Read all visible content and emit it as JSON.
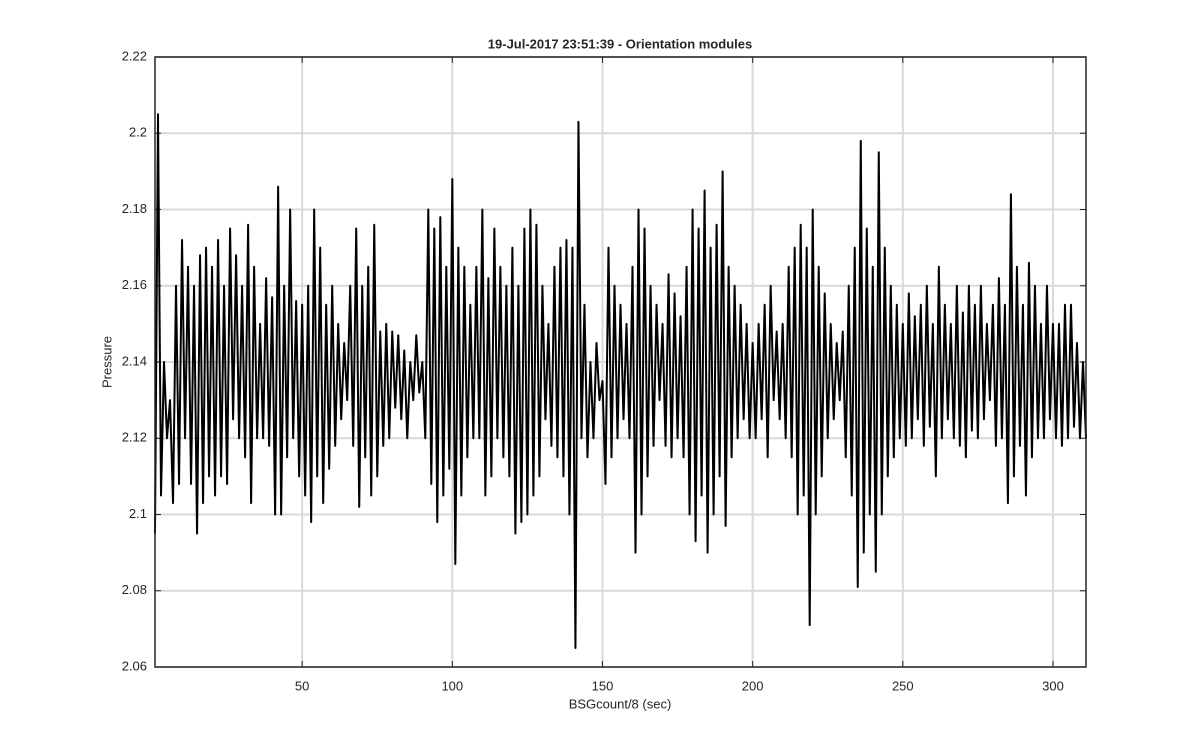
{
  "chart_data": {
    "type": "line",
    "title": "19-Jul-2017 23:51:39 - Orientation modules",
    "x_label": "BSGcount/8 (sec)",
    "y_label": "Pressure",
    "xlim": [
      1,
      311
    ],
    "ylim": [
      2.06,
      2.22
    ],
    "xticks": [
      50,
      100,
      150,
      200,
      250,
      300
    ],
    "yticks": [
      2.06,
      2.08,
      2.1,
      2.12,
      2.14,
      2.16,
      2.18,
      2.2,
      2.22
    ],
    "grid": true,
    "series": [
      {
        "color": "#000000",
        "x": [
          1,
          2,
          3,
          4,
          5,
          6,
          7,
          8,
          9,
          10,
          11,
          12,
          13,
          14,
          15,
          16,
          17,
          18,
          19,
          20,
          21,
          22,
          23,
          24,
          25,
          26,
          27,
          28,
          29,
          30,
          31,
          32,
          33,
          34,
          35,
          36,
          37,
          38,
          39,
          40,
          41,
          42,
          43,
          44,
          45,
          46,
          47,
          48,
          49,
          50,
          51,
          52,
          53,
          54,
          55,
          56,
          57,
          58,
          59,
          60,
          61,
          62,
          63,
          64,
          65,
          66,
          67,
          68,
          69,
          70,
          71,
          72,
          73,
          74,
          75,
          76,
          77,
          78,
          79,
          80,
          81,
          82,
          83,
          84,
          85,
          86,
          87,
          88,
          89,
          90,
          91,
          92,
          93,
          94,
          95,
          96,
          97,
          98,
          99,
          100,
          101,
          102,
          103,
          104,
          105,
          106,
          107,
          108,
          109,
          110,
          111,
          112,
          113,
          114,
          115,
          116,
          117,
          118,
          119,
          120,
          121,
          122,
          123,
          124,
          125,
          126,
          127,
          128,
          129,
          130,
          131,
          132,
          133,
          134,
          135,
          136,
          137,
          138,
          139,
          140,
          141,
          142,
          143,
          144,
          145,
          146,
          147,
          148,
          149,
          150,
          151,
          152,
          153,
          154,
          155,
          156,
          157,
          158,
          159,
          160,
          161,
          162,
          163,
          164,
          165,
          166,
          167,
          168,
          169,
          170,
          171,
          172,
          173,
          174,
          175,
          176,
          177,
          178,
          179,
          180,
          181,
          182,
          183,
          184,
          185,
          186,
          187,
          188,
          189,
          190,
          191,
          192,
          193,
          194,
          195,
          196,
          197,
          198,
          199,
          200,
          201,
          202,
          203,
          204,
          205,
          206,
          207,
          208,
          209,
          210,
          211,
          212,
          213,
          214,
          215,
          216,
          217,
          218,
          219,
          220,
          221,
          222,
          223,
          224,
          225,
          226,
          227,
          228,
          229,
          230,
          231,
          232,
          233,
          234,
          235,
          236,
          237,
          238,
          239,
          240,
          241,
          242,
          243,
          244,
          245,
          246,
          247,
          248,
          249,
          250,
          251,
          252,
          253,
          254,
          255,
          256,
          257,
          258,
          259,
          260,
          261,
          262,
          263,
          264,
          265,
          266,
          267,
          268,
          269,
          270,
          271,
          272,
          273,
          274,
          275,
          276,
          277,
          278,
          279,
          280,
          281,
          282,
          283,
          284,
          285,
          286,
          287,
          288,
          289,
          290,
          291,
          292,
          293,
          294,
          295,
          296,
          297,
          298,
          299,
          300,
          301,
          302,
          303,
          304,
          305,
          306,
          307,
          308,
          309,
          310,
          311
        ],
        "values": [
          2.095,
          2.205,
          2.105,
          2.14,
          2.12,
          2.13,
          2.103,
          2.16,
          2.108,
          2.172,
          2.12,
          2.165,
          2.108,
          2.16,
          2.095,
          2.168,
          2.103,
          2.17,
          2.11,
          2.165,
          2.105,
          2.172,
          2.11,
          2.16,
          2.108,
          2.175,
          2.125,
          2.168,
          2.12,
          2.16,
          2.115,
          2.176,
          2.103,
          2.165,
          2.12,
          2.15,
          2.12,
          2.162,
          2.118,
          2.157,
          2.1,
          2.186,
          2.1,
          2.16,
          2.115,
          2.18,
          2.12,
          2.156,
          2.11,
          2.155,
          2.105,
          2.16,
          2.098,
          2.18,
          2.11,
          2.17,
          2.103,
          2.155,
          2.112,
          2.16,
          2.118,
          2.15,
          2.125,
          2.145,
          2.13,
          2.16,
          2.118,
          2.175,
          2.102,
          2.16,
          2.115,
          2.165,
          2.105,
          2.176,
          2.11,
          2.148,
          2.118,
          2.15,
          2.12,
          2.148,
          2.128,
          2.147,
          2.125,
          2.143,
          2.12,
          2.14,
          2.13,
          2.147,
          2.132,
          2.14,
          2.12,
          2.18,
          2.108,
          2.175,
          2.098,
          2.178,
          2.105,
          2.165,
          2.112,
          2.188,
          2.087,
          2.17,
          2.105,
          2.165,
          2.115,
          2.155,
          2.12,
          2.165,
          2.12,
          2.18,
          2.105,
          2.162,
          2.11,
          2.175,
          2.12,
          2.165,
          2.115,
          2.16,
          2.11,
          2.17,
          2.095,
          2.16,
          2.098,
          2.175,
          2.1,
          2.18,
          2.105,
          2.176,
          2.11,
          2.16,
          2.125,
          2.15,
          2.118,
          2.165,
          2.115,
          2.17,
          2.11,
          2.172,
          2.1,
          2.17,
          2.065,
          2.203,
          2.12,
          2.155,
          2.115,
          2.14,
          2.12,
          2.145,
          2.13,
          2.135,
          2.108,
          2.17,
          2.115,
          2.16,
          2.12,
          2.155,
          2.125,
          2.15,
          2.12,
          2.165,
          2.09,
          2.18,
          2.1,
          2.175,
          2.11,
          2.16,
          2.118,
          2.155,
          2.13,
          2.15,
          2.118,
          2.163,
          2.115,
          2.158,
          2.12,
          2.152,
          2.115,
          2.165,
          2.1,
          2.18,
          2.093,
          2.175,
          2.105,
          2.185,
          2.09,
          2.17,
          2.1,
          2.176,
          2.11,
          2.19,
          2.097,
          2.165,
          2.115,
          2.16,
          2.12,
          2.155,
          2.125,
          2.15,
          2.12,
          2.145,
          2.12,
          2.15,
          2.125,
          2.155,
          2.115,
          2.16,
          2.13,
          2.148,
          2.125,
          2.15,
          2.12,
          2.165,
          2.115,
          2.17,
          2.1,
          2.176,
          2.105,
          2.17,
          2.071,
          2.18,
          2.1,
          2.165,
          2.11,
          2.158,
          2.12,
          2.15,
          2.125,
          2.145,
          2.13,
          2.148,
          2.115,
          2.16,
          2.105,
          2.17,
          2.081,
          2.198,
          2.09,
          2.175,
          2.1,
          2.165,
          2.085,
          2.195,
          2.1,
          2.17,
          2.11,
          2.16,
          2.115,
          2.155,
          2.12,
          2.15,
          2.118,
          2.158,
          2.12,
          2.152,
          2.125,
          2.155,
          2.118,
          2.16,
          2.123,
          2.15,
          2.11,
          2.165,
          2.12,
          2.155,
          2.125,
          2.15,
          2.12,
          2.16,
          2.118,
          2.153,
          2.115,
          2.16,
          2.122,
          2.155,
          2.12,
          2.16,
          2.125,
          2.15,
          2.13,
          2.155,
          2.118,
          2.162,
          2.12,
          2.155,
          2.103,
          2.184,
          2.11,
          2.165,
          2.118,
          2.155,
          2.105,
          2.166,
          2.115,
          2.16,
          2.12,
          2.15,
          2.12,
          2.16,
          2.125,
          2.15,
          2.12,
          2.15,
          2.118,
          2.155,
          2.12,
          2.155,
          2.123,
          2.145,
          2.12,
          2.14,
          2.12
        ]
      }
    ]
  }
}
